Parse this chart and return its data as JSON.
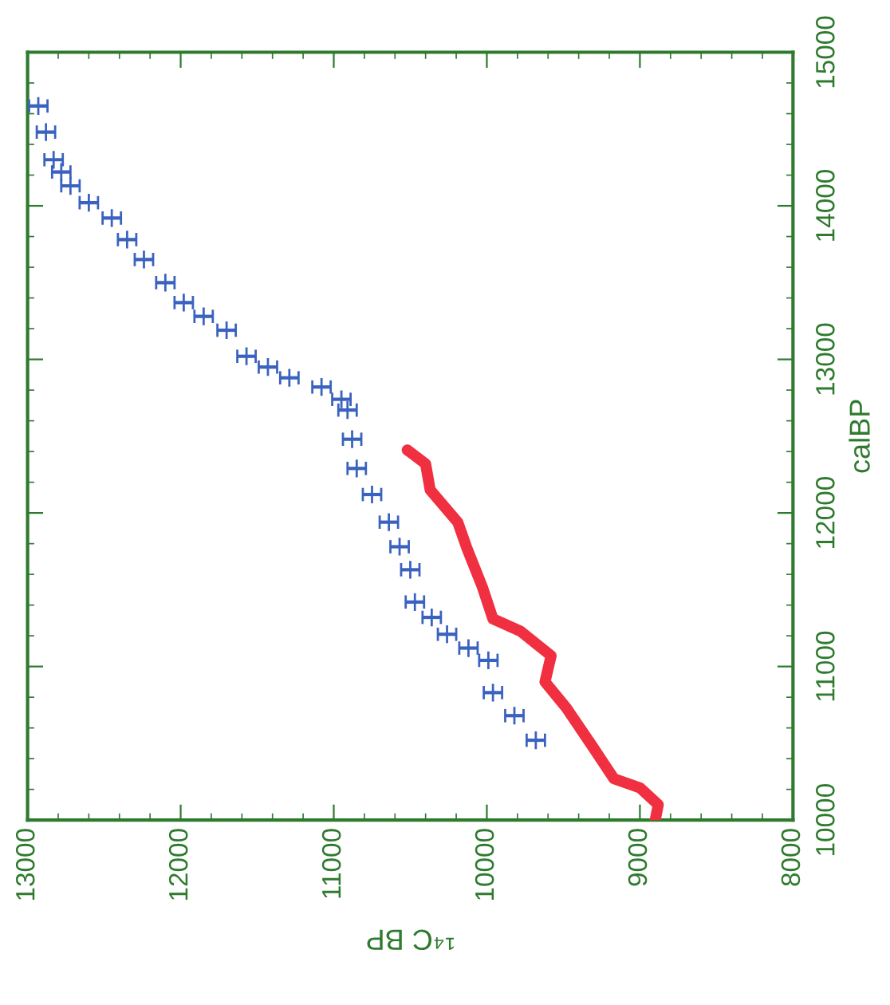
{
  "chart_data": {
    "type": "scatter",
    "xlabel": "¹⁴C BP",
    "ylabel": "calBP",
    "xlim": [
      13000,
      8000
    ],
    "xticks": [
      13000,
      12000,
      11000,
      10000,
      9000,
      8000
    ],
    "ylim": [
      10000,
      15000
    ],
    "yticks": [
      10000,
      11000,
      12000,
      13000,
      14000,
      15000
    ],
    "grid": false,
    "legend": false,
    "series": [
      {
        "color": "#3a62bf",
        "marker": "cross",
        "x": [
          12930,
          12880,
          12830,
          12780,
          12720,
          12600,
          12450,
          12350,
          12240,
          12100,
          11980,
          11850,
          11700,
          11570,
          11430,
          11290,
          11080,
          10950,
          10910,
          10880,
          10850,
          10750,
          10640,
          10570,
          10500,
          10470,
          10360,
          10260,
          10120,
          9990,
          9960,
          9820,
          9680
        ],
        "values": [
          14650,
          14480,
          14300,
          14220,
          14130,
          14020,
          13920,
          13780,
          13650,
          13500,
          13370,
          13280,
          13190,
          13020,
          12950,
          12880,
          12820,
          12740,
          12670,
          12480,
          12290,
          12120,
          11940,
          11780,
          11630,
          11420,
          11320,
          11210,
          11120,
          11040,
          10830,
          10680,
          10520
        ],
        "xerrors": [
          60,
          60,
          60,
          60,
          60,
          60,
          60,
          60,
          60,
          60,
          60,
          60,
          60,
          60,
          60,
          60,
          60,
          60,
          60,
          60,
          60,
          60,
          60,
          60,
          60,
          60,
          60,
          60,
          60,
          60,
          60,
          60,
          60
        ]
      },
      {
        "type": "line",
        "color": "#f03040",
        "marker": "none",
        "line_style": "solid",
        "x": [
          10520,
          10400,
          10370,
          10190,
          10130,
          10030,
          9960,
          9780,
          9580,
          9620,
          9480,
          9310,
          9170,
          9000,
          8880,
          8900
        ],
        "values": [
          12410,
          12320,
          12150,
          11940,
          11770,
          11520,
          11310,
          11230,
          11070,
          10900,
          10730,
          10480,
          10270,
          10210,
          10100,
          10000
        ]
      }
    ]
  }
}
